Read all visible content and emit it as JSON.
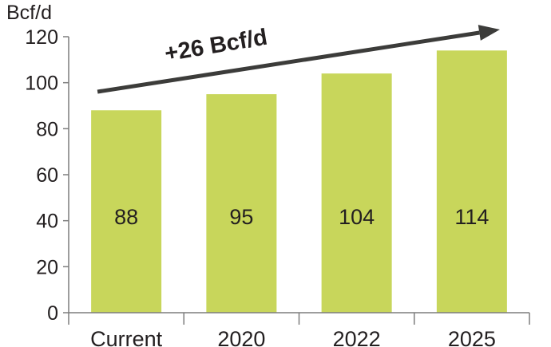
{
  "chart_data": {
    "type": "bar",
    "categories": [
      "Current",
      "2020",
      "2022",
      "2025"
    ],
    "values": [
      88,
      95,
      104,
      114
    ],
    "data_labels": [
      "88",
      "95",
      "104",
      "114"
    ],
    "ylabel": "Bcf/d",
    "xlabel": "",
    "ylim": [
      0,
      120
    ],
    "yticks": [
      0,
      20,
      40,
      60,
      80,
      100,
      120
    ],
    "grid": false,
    "annotation": "+26 Bcf/d",
    "annotation_arrow": {
      "from_category": "Current",
      "to_category": "2025",
      "direction": "up-right"
    },
    "colors": {
      "bar": "#c8d65b",
      "axis": "#7d7d7d",
      "arrow": "#3c3c3a",
      "text": "#231f20"
    }
  }
}
